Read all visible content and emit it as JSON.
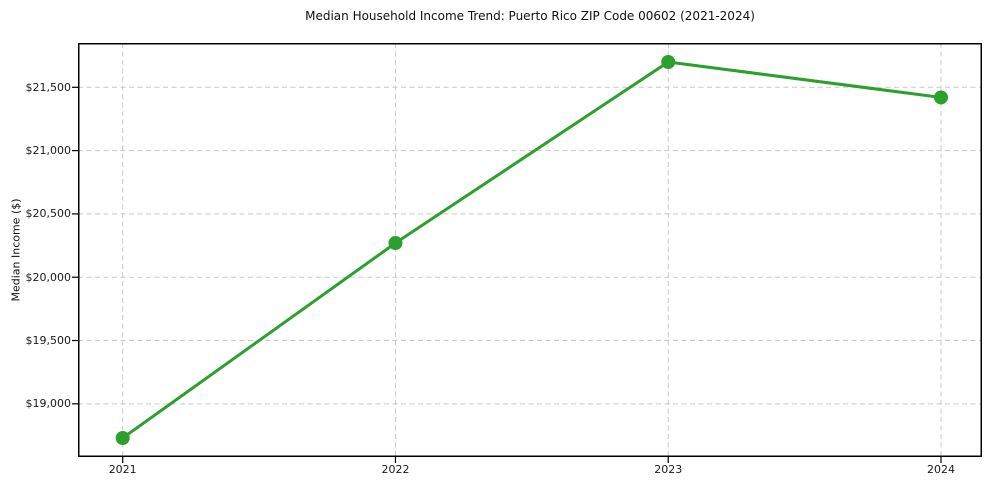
{
  "chart_data": {
    "type": "line",
    "title": "Median Household Income Trend: Puerto Rico ZIP Code 00602 (2021-2024)",
    "xlabel": "",
    "ylabel": "Median Income ($)",
    "categories": [
      "2021",
      "2022",
      "2023",
      "2024"
    ],
    "series": [
      {
        "name": "Median Household Income",
        "values": [
          18730,
          20270,
          21700,
          21420
        ]
      }
    ],
    "yticks": [
      19000,
      19500,
      20000,
      20500,
      21000,
      21500
    ],
    "ytick_labels": [
      "$19,000",
      "$19,500",
      "$20,000",
      "$20,500",
      "$21,000",
      "$21,500"
    ],
    "ylim": [
      18580,
      21850
    ],
    "grid": true,
    "grid_line_style": "dashed",
    "grid_color": "#c9c9c9",
    "line_color": "#2ca02c",
    "marker": "circle",
    "marker_color": "#2ca02c",
    "spine_color": "#000000",
    "legend_position": "none"
  }
}
